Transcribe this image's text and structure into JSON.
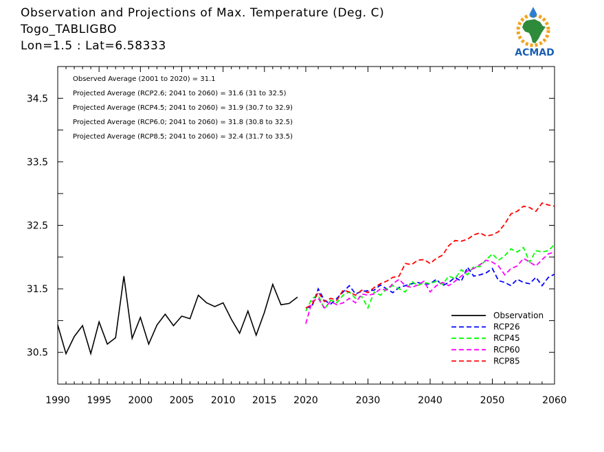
{
  "header": {
    "title_line1": "Observation and Projections of Max. Temperature (Deg. C)",
    "title_line2": "Togo_TABLIGBO",
    "title_line3": "Lon=1.5 : Lat=6.58333"
  },
  "logo": {
    "text": "ACMAD",
    "icon": "africa-map-icon"
  },
  "stats": [
    "Observed Average (2001 to 2020) = 31.1",
    "Projected Average (RCP2.6; 2041 to 2060) = 31.6 (31 to 32.5)",
    "Projected Average (RCP4.5; 2041 to 2060) = 31.9 (30.7 to 32.9)",
    "Projected Average (RCP6.0; 2041 to 2060) = 31.8 (30.8 to 32.5)",
    "Projected Average (RCP8.5; 2041 to 2060) = 32.4 (31.7 to 33.5)"
  ],
  "chart_data": {
    "type": "line",
    "title": "Observation and Projections of Max. Temperature (Deg. C)",
    "xlabel": "",
    "ylabel": "",
    "xlim": [
      1990,
      2060
    ],
    "ylim": [
      30,
      35
    ],
    "grid": false,
    "legend_position": "bottom-right",
    "x_ticks_left": [
      "1990",
      "1995",
      "2000",
      "2005",
      "2010",
      "2015",
      "2020"
    ],
    "x_ticks_right": [
      "2030",
      "2040",
      "2050",
      "2060"
    ],
    "y_ticks": [
      "30.5",
      "31.5",
      "32.5",
      "33.5",
      "34.5"
    ],
    "series": [
      {
        "name": "Observation",
        "color": "#000000",
        "dash": "solid",
        "x": [
          1990,
          1991,
          1992,
          1993,
          1994,
          1995,
          1996,
          1997,
          1998,
          1999,
          2000,
          2001,
          2002,
          2003,
          2004,
          2005,
          2006,
          2007,
          2008,
          2009,
          2010,
          2011,
          2012,
          2013,
          2014,
          2015,
          2016,
          2017,
          2018,
          2019
        ],
        "y": [
          30.93,
          30.48,
          30.75,
          30.92,
          30.48,
          30.98,
          30.63,
          30.73,
          31.7,
          30.72,
          31.05,
          30.63,
          30.93,
          31.1,
          30.92,
          31.07,
          31.03,
          31.4,
          31.28,
          31.22,
          31.28,
          31.02,
          30.8,
          31.15,
          30.77,
          31.13,
          31.57,
          31.25,
          31.27,
          31.37
        ]
      },
      {
        "name": "RCP26",
        "color": "#0000ff",
        "dash": "dashed",
        "x": [
          2020,
          2021,
          2022,
          2023,
          2024,
          2025,
          2026,
          2027,
          2028,
          2029,
          2030,
          2031,
          2032,
          2033,
          2034,
          2035,
          2036,
          2037,
          2038,
          2039,
          2040,
          2041,
          2042,
          2043,
          2044,
          2045,
          2046,
          2047,
          2048,
          2049,
          2050,
          2051,
          2052,
          2053,
          2054,
          2055,
          2056,
          2057,
          2058,
          2059,
          2060
        ],
        "y": [
          31.2,
          31.22,
          31.5,
          31.32,
          31.26,
          31.35,
          31.45,
          31.55,
          31.42,
          31.46,
          31.47,
          31.48,
          31.56,
          31.5,
          31.44,
          31.52,
          31.55,
          31.58,
          31.6,
          31.57,
          31.58,
          31.65,
          31.55,
          31.6,
          31.68,
          31.62,
          31.84,
          31.7,
          31.72,
          31.75,
          31.82,
          31.63,
          31.6,
          31.55,
          31.65,
          31.6,
          31.58,
          31.68,
          31.55,
          31.68,
          31.73
        ]
      },
      {
        "name": "RCP45",
        "color": "#00ff00",
        "dash": "dashed",
        "x": [
          2020,
          2021,
          2022,
          2023,
          2024,
          2025,
          2026,
          2027,
          2028,
          2029,
          2030,
          2031,
          2032,
          2033,
          2034,
          2035,
          2036,
          2037,
          2038,
          2039,
          2040,
          2041,
          2042,
          2043,
          2044,
          2045,
          2046,
          2047,
          2048,
          2049,
          2050,
          2051,
          2052,
          2053,
          2054,
          2055,
          2056,
          2057,
          2058,
          2059,
          2060
        ],
        "y": [
          31.15,
          31.35,
          31.4,
          31.18,
          31.32,
          31.28,
          31.4,
          31.45,
          31.35,
          31.38,
          31.2,
          31.45,
          31.4,
          31.5,
          31.55,
          31.5,
          31.45,
          31.62,
          31.55,
          31.6,
          31.58,
          31.62,
          31.57,
          31.7,
          31.66,
          31.8,
          31.72,
          31.85,
          31.85,
          31.96,
          32.05,
          31.95,
          32.02,
          32.13,
          32.08,
          32.15,
          31.92,
          32.1,
          32.08,
          32.1,
          32.2
        ]
      },
      {
        "name": "RCP60",
        "color": "#ff00ff",
        "dash": "dashed",
        "x": [
          2020,
          2021,
          2022,
          2023,
          2024,
          2025,
          2026,
          2027,
          2028,
          2029,
          2030,
          2031,
          2032,
          2033,
          2034,
          2035,
          2036,
          2037,
          2038,
          2039,
          2040,
          2041,
          2042,
          2043,
          2044,
          2045,
          2046,
          2047,
          2048,
          2049,
          2050,
          2051,
          2052,
          2053,
          2054,
          2055,
          2056,
          2057,
          2058,
          2059,
          2060
        ],
        "y": [
          30.95,
          31.3,
          31.35,
          31.2,
          31.3,
          31.25,
          31.28,
          31.35,
          31.28,
          31.42,
          31.4,
          31.42,
          31.5,
          31.48,
          31.58,
          31.65,
          31.55,
          31.52,
          31.56,
          31.62,
          31.45,
          31.55,
          31.6,
          31.55,
          31.62,
          31.7,
          31.78,
          31.82,
          31.88,
          31.95,
          31.92,
          31.86,
          31.72,
          31.82,
          31.86,
          31.98,
          31.92,
          31.86,
          31.96,
          32.05,
          32.08
        ]
      },
      {
        "name": "RCP85",
        "color": "#ff0000",
        "dash": "dashed",
        "x": [
          2020,
          2021,
          2022,
          2023,
          2024,
          2025,
          2026,
          2027,
          2028,
          2029,
          2030,
          2031,
          2032,
          2033,
          2034,
          2035,
          2036,
          2037,
          2038,
          2039,
          2040,
          2041,
          2042,
          2043,
          2044,
          2045,
          2046,
          2047,
          2048,
          2049,
          2050,
          2051,
          2052,
          2053,
          2054,
          2055,
          2056,
          2057,
          2058,
          2059,
          2060
        ],
        "y": [
          31.2,
          31.25,
          31.45,
          31.3,
          31.35,
          31.32,
          31.48,
          31.45,
          31.4,
          31.48,
          31.44,
          31.52,
          31.58,
          31.62,
          31.68,
          31.7,
          31.9,
          31.88,
          31.95,
          31.96,
          31.9,
          31.98,
          32.03,
          32.18,
          32.26,
          32.25,
          32.28,
          32.35,
          32.38,
          32.33,
          32.35,
          32.4,
          32.52,
          32.68,
          32.72,
          32.8,
          32.78,
          32.72,
          32.85,
          32.82,
          32.8
        ]
      }
    ]
  }
}
